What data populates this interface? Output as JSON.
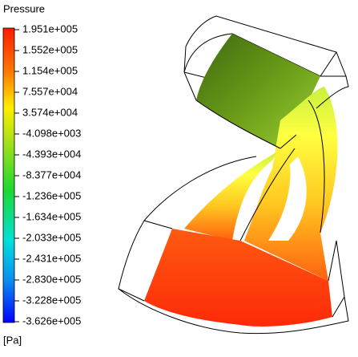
{
  "legend": {
    "title": "Pressure",
    "labels": [
      "1.951e+005",
      "1.552e+005",
      "1.154e+005",
      "7.557e+004",
      "3.574e+004",
      "-4.098e+003",
      "-4.393e+004",
      "-8.377e+004",
      "-1.236e+005",
      "-1.634e+005",
      "-2.033e+005",
      "-2.431e+005",
      "-2.830e+005",
      "-3.228e+005",
      "-3.626e+005"
    ],
    "unit": "[Pa]"
  }
}
